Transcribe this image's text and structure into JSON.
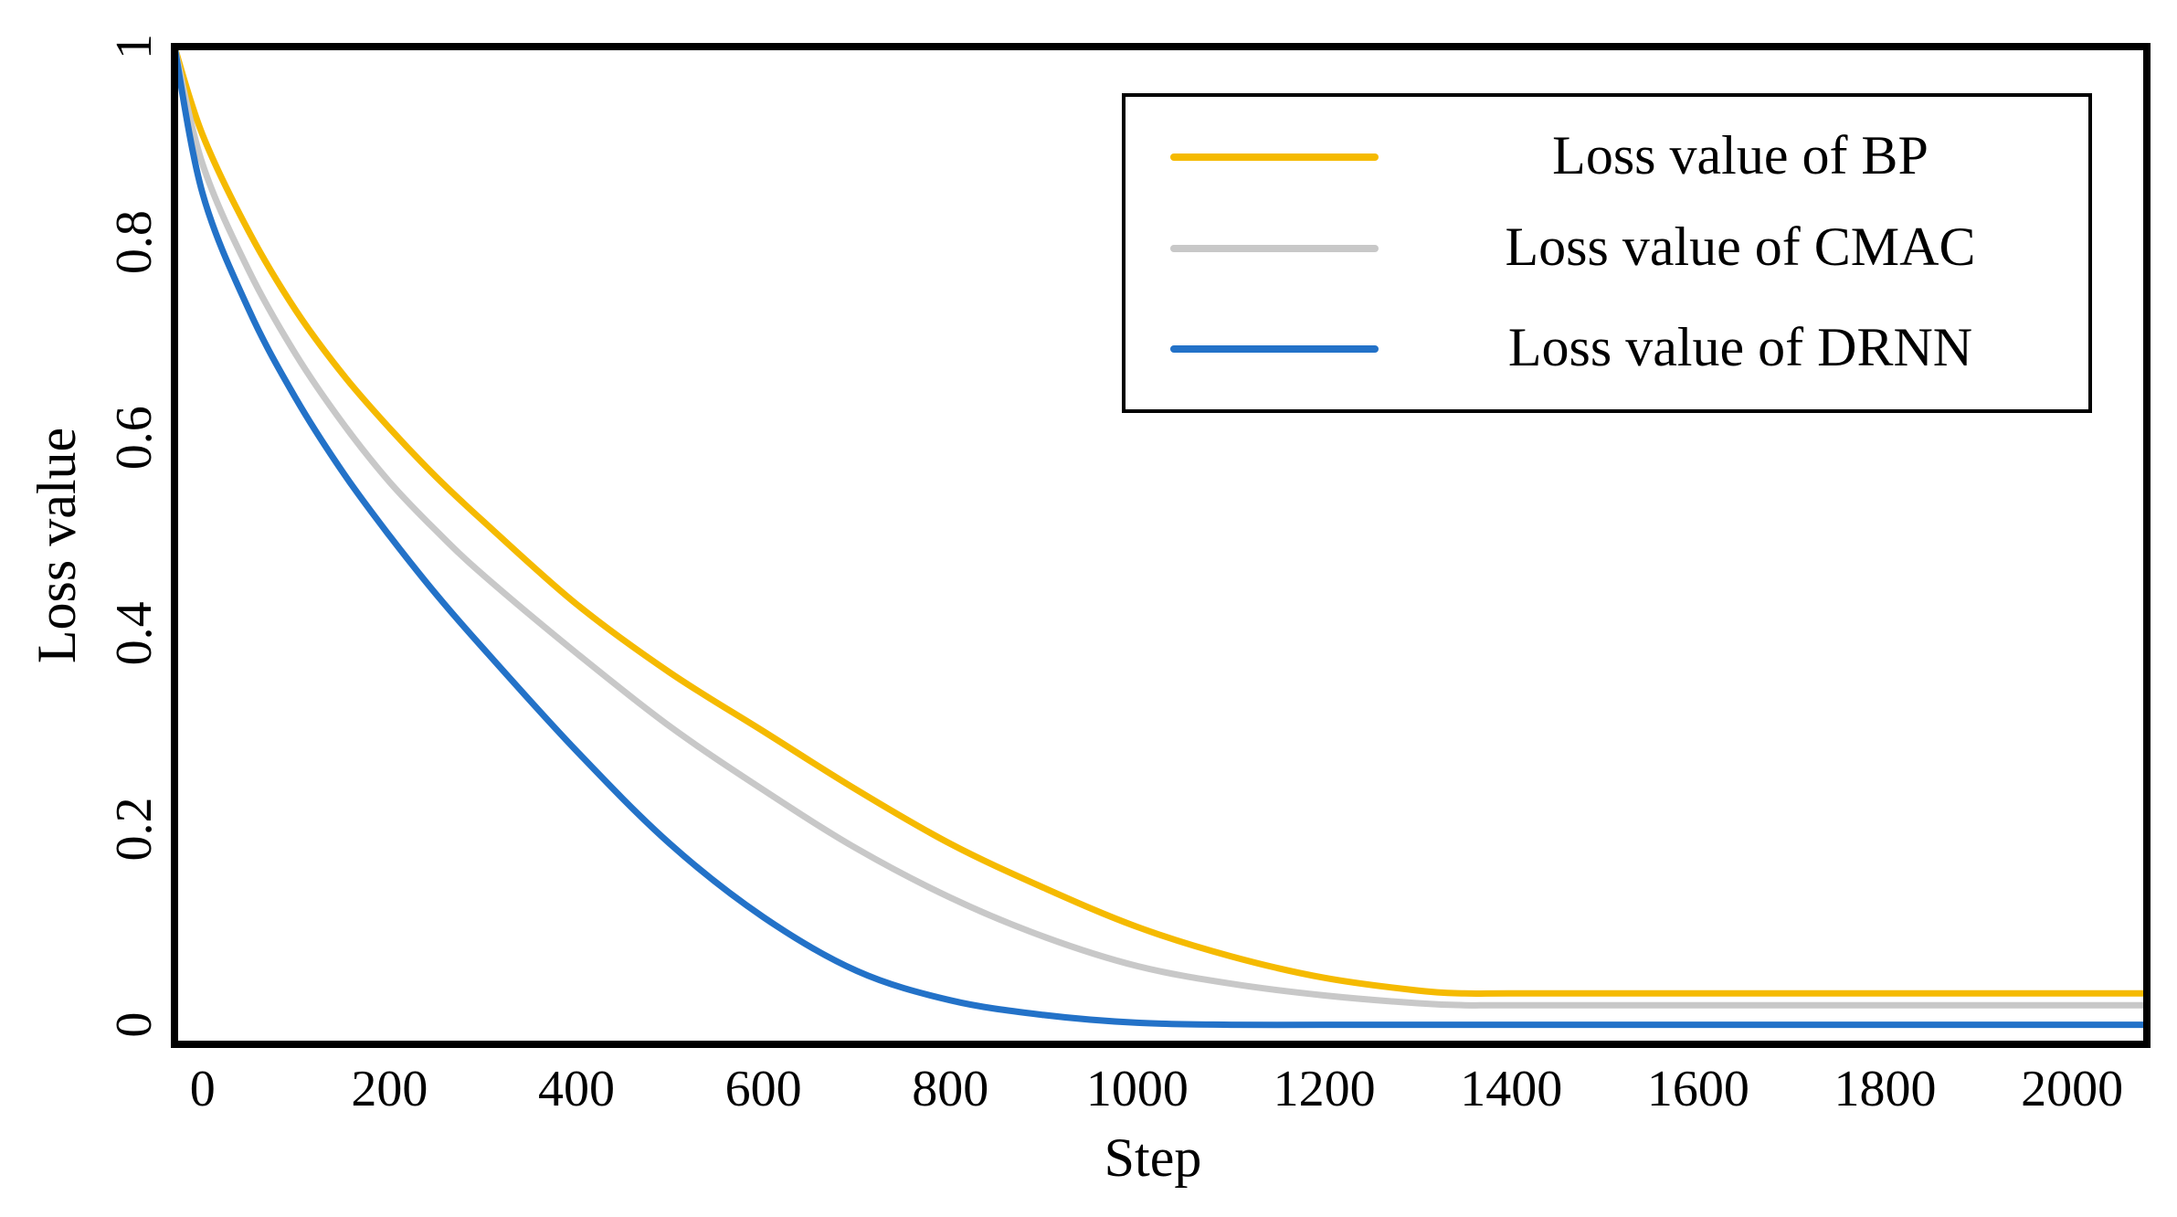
{
  "chart_data": {
    "type": "line",
    "title": "",
    "xlabel": "Step",
    "ylabel": "Loss value",
    "xlim": [
      -30,
      2080
    ],
    "ylim": [
      -0.02,
      1.0
    ],
    "xticks": [
      0,
      200,
      400,
      600,
      800,
      1000,
      1200,
      1400,
      1600,
      1800,
      2000
    ],
    "xtick_labels": [
      "0",
      "200",
      "400",
      "600",
      "800",
      "1000",
      "1200",
      "1400",
      "1600",
      "1800",
      "2000"
    ],
    "yticks": [
      0,
      0.2,
      0.4,
      0.6,
      0.8,
      1
    ],
    "ytick_labels": [
      "0",
      "0.2",
      "0.4",
      "0.6",
      "0.8",
      "1"
    ],
    "grid": false,
    "legend_position": "top-right",
    "x": [
      -30,
      0,
      50,
      100,
      150,
      200,
      250,
      300,
      400,
      500,
      600,
      700,
      800,
      900,
      1000,
      1100,
      1200,
      1300,
      1350,
      1400,
      1600,
      1800,
      2000,
      2080
    ],
    "series": [
      {
        "name": "Loss value of BP",
        "color": "#F5BA00",
        "values": [
          1.0,
          0.91,
          0.81,
          0.73,
          0.665,
          0.61,
          0.56,
          0.515,
          0.43,
          0.36,
          0.3,
          0.24,
          0.185,
          0.14,
          0.1,
          0.07,
          0.048,
          0.035,
          0.032,
          0.032,
          0.032,
          0.032,
          0.032,
          0.032
        ]
      },
      {
        "name": "Loss value of CMAC",
        "color": "#C8C8C8",
        "values": [
          1.0,
          0.88,
          0.77,
          0.685,
          0.615,
          0.555,
          0.505,
          0.46,
          0.38,
          0.305,
          0.24,
          0.18,
          0.13,
          0.09,
          0.06,
          0.042,
          0.03,
          0.022,
          0.02,
          0.02,
          0.02,
          0.02,
          0.02,
          0.02
        ]
      },
      {
        "name": "Loss value of DRNN",
        "color": "#2372C8",
        "values": [
          1.0,
          0.85,
          0.73,
          0.64,
          0.565,
          0.5,
          0.44,
          0.385,
          0.28,
          0.185,
          0.11,
          0.055,
          0.025,
          0.01,
          0.002,
          0.0,
          0.0,
          0.0,
          0.0,
          0.0,
          0.0,
          0.0,
          0.0,
          0.0
        ]
      }
    ]
  }
}
